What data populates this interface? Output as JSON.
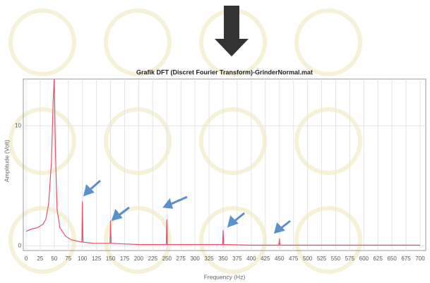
{
  "chart_data": {
    "type": "line",
    "title": "Grafik DFT (Discret Fourier Transform)-GrinderNormal.mat",
    "x_label": "Frequency (Hz)",
    "y_label": "Amplitude (Volt)",
    "color": "#e8506a",
    "grid": true,
    "x": [
      0,
      5,
      10,
      20,
      30,
      35,
      40,
      45,
      48,
      50,
      52,
      55,
      60,
      70,
      80,
      99,
      100,
      101,
      120,
      149,
      150,
      151,
      200,
      249,
      250,
      251,
      300,
      349,
      350,
      351,
      400,
      449,
      450,
      451,
      500,
      600,
      700
    ],
    "values": [
      1.2,
      1.3,
      1.4,
      1.5,
      1.8,
      2.2,
      3.5,
      7,
      12,
      14,
      8,
      3,
      1.5,
      0.8,
      0.5,
      0.3,
      3.7,
      0.3,
      0.2,
      0.2,
      2.1,
      0.2,
      0.1,
      0.1,
      2.2,
      0.1,
      0.1,
      0.1,
      1.3,
      0.1,
      0.05,
      0.05,
      0.6,
      0.05,
      0.05,
      0.05,
      0.05
    ],
    "xlim": [
      -5,
      710
    ],
    "ylim": [
      -0.4,
      13.9
    ],
    "xticks": [
      0,
      25,
      50,
      75,
      100,
      125,
      150,
      175,
      200,
      225,
      250,
      275,
      300,
      325,
      350,
      375,
      400,
      425,
      450,
      475,
      500,
      525,
      550,
      575,
      600,
      625,
      650,
      675,
      700
    ],
    "yticks": [
      0,
      10
    ]
  }
}
